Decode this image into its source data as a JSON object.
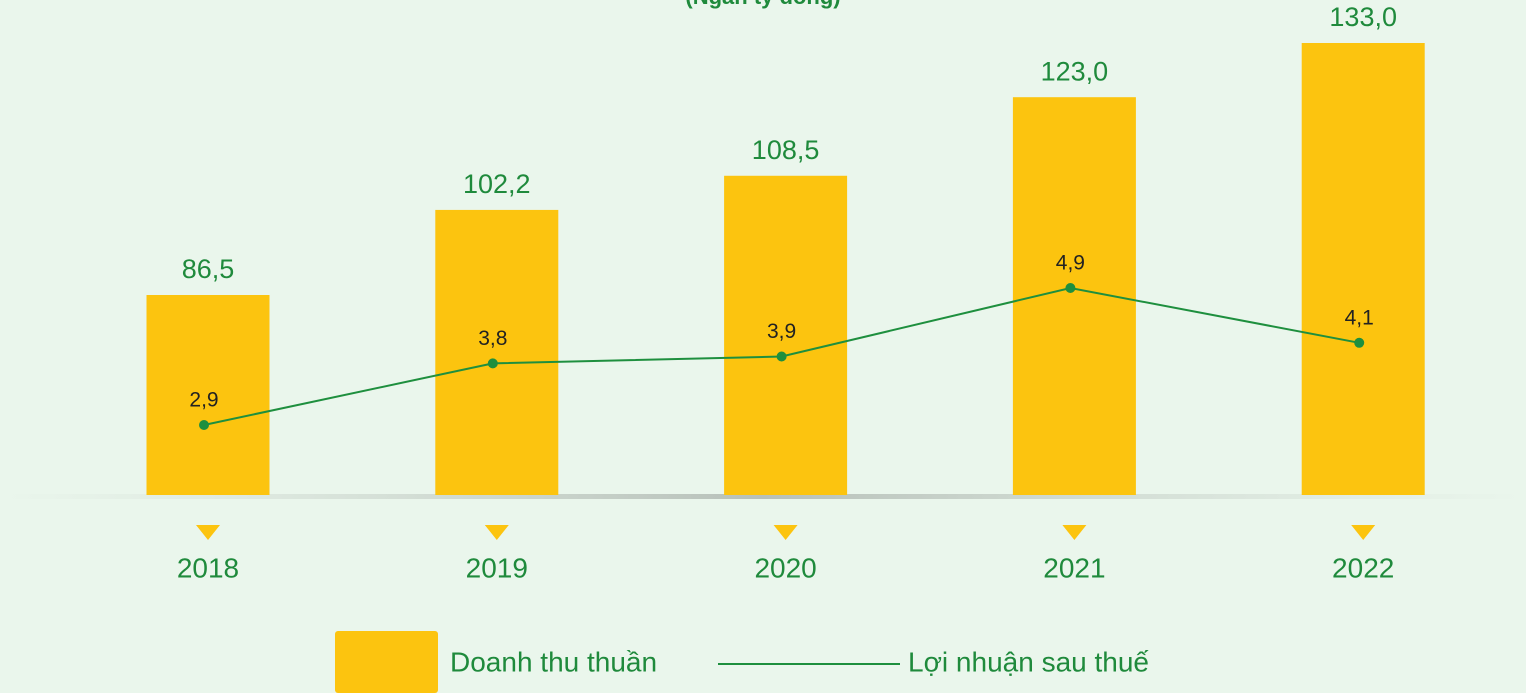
{
  "chart_data": {
    "type": "bar-line",
    "subtitle": "(Ngàn tỷ đồng)",
    "categories": [
      "2018",
      "2019",
      "2020",
      "2021",
      "2022"
    ],
    "series": [
      {
        "name": "Doanh thu thuần",
        "type": "bar",
        "color": "#fcc40f",
        "values": [
          86.5,
          102.2,
          108.5,
          123.0,
          133.0
        ],
        "value_labels": [
          "86,5",
          "102,2",
          "108,5",
          "123,0",
          "133,0"
        ]
      },
      {
        "name": "Lợi nhuận sau thuế",
        "type": "line",
        "color": "#1e8f3e",
        "values": [
          2.9,
          3.8,
          3.9,
          4.9,
          4.1
        ],
        "value_labels": [
          "2,9",
          "3,8",
          "3,9",
          "4,9",
          "4,1"
        ]
      }
    ]
  }
}
